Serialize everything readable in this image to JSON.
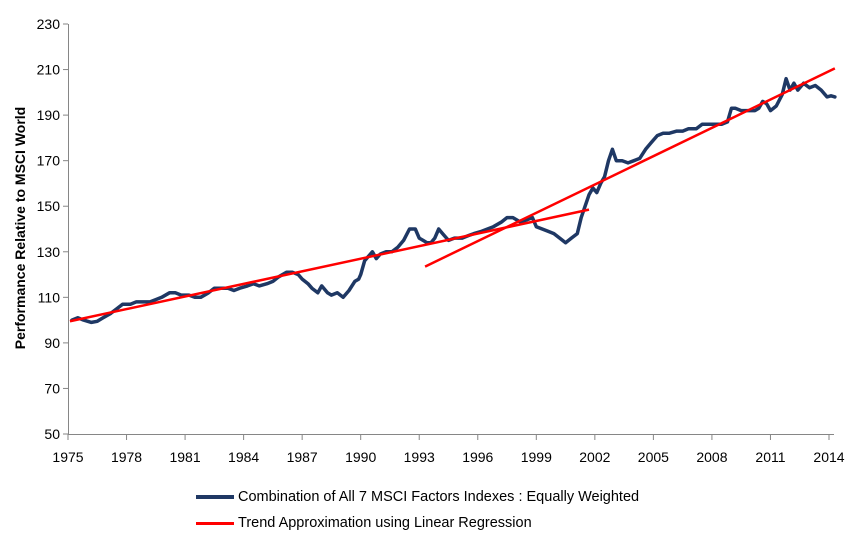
{
  "chart_data": {
    "type": "line",
    "title": "",
    "xlabel": "",
    "ylabel": "Performance Relative to MSCI World",
    "xlim": [
      1975,
      2014.3
    ],
    "ylim": [
      50,
      230
    ],
    "x_ticks": [
      "1975",
      "1978",
      "1981",
      "1984",
      "1987",
      "1990",
      "1993",
      "1996",
      "1999",
      "2002",
      "2005",
      "2008",
      "2011",
      "2014"
    ],
    "y_ticks": [
      "50",
      "70",
      "90",
      "110",
      "130",
      "150",
      "170",
      "190",
      "210",
      "230"
    ],
    "grid": false,
    "legend_position": "bottom",
    "series": [
      {
        "name": "Combination of All 7 MSCI Factors Indexes : Equally Weighted",
        "color": "#1f3864",
        "points": [
          [
            1975.2,
            100
          ],
          [
            1975.5,
            101
          ],
          [
            1975.8,
            100
          ],
          [
            1976.2,
            99
          ],
          [
            1976.5,
            99.5
          ],
          [
            1976.8,
            101
          ],
          [
            1977.2,
            103
          ],
          [
            1977.5,
            105
          ],
          [
            1977.8,
            107
          ],
          [
            1978.2,
            107
          ],
          [
            1978.5,
            108
          ],
          [
            1978.8,
            108
          ],
          [
            1979.2,
            108
          ],
          [
            1979.5,
            109
          ],
          [
            1979.8,
            110
          ],
          [
            1980.2,
            112
          ],
          [
            1980.5,
            112
          ],
          [
            1980.8,
            111
          ],
          [
            1981.2,
            111
          ],
          [
            1981.5,
            110
          ],
          [
            1981.8,
            110
          ],
          [
            1982.2,
            112
          ],
          [
            1982.5,
            114
          ],
          [
            1982.8,
            114
          ],
          [
            1983.2,
            114
          ],
          [
            1983.5,
            113
          ],
          [
            1983.8,
            114
          ],
          [
            1984.2,
            115
          ],
          [
            1984.5,
            116
          ],
          [
            1984.8,
            115
          ],
          [
            1985.2,
            116
          ],
          [
            1985.5,
            117
          ],
          [
            1985.8,
            119
          ],
          [
            1986.2,
            121
          ],
          [
            1986.5,
            121
          ],
          [
            1986.8,
            120
          ],
          [
            1987.0,
            118
          ],
          [
            1987.3,
            116
          ],
          [
            1987.5,
            114
          ],
          [
            1987.8,
            112
          ],
          [
            1988.0,
            115
          ],
          [
            1988.3,
            112
          ],
          [
            1988.5,
            111
          ],
          [
            1988.8,
            112
          ],
          [
            1989.1,
            110
          ],
          [
            1989.4,
            113
          ],
          [
            1989.7,
            117
          ],
          [
            1989.9,
            118
          ],
          [
            1990.0,
            120
          ],
          [
            1990.2,
            126
          ],
          [
            1990.4,
            128
          ],
          [
            1990.6,
            130
          ],
          [
            1990.8,
            127
          ],
          [
            1991.0,
            129
          ],
          [
            1991.3,
            130
          ],
          [
            1991.6,
            130
          ],
          [
            1991.9,
            132
          ],
          [
            1992.2,
            135
          ],
          [
            1992.5,
            140
          ],
          [
            1992.8,
            140
          ],
          [
            1993.0,
            136
          ],
          [
            1993.2,
            135
          ],
          [
            1993.4,
            134
          ],
          [
            1993.6,
            134
          ],
          [
            1993.8,
            136
          ],
          [
            1994.0,
            140
          ],
          [
            1994.2,
            138
          ],
          [
            1994.5,
            135
          ],
          [
            1994.8,
            136
          ],
          [
            1995.2,
            136
          ],
          [
            1995.5,
            137
          ],
          [
            1995.8,
            138
          ],
          [
            1996.2,
            139
          ],
          [
            1996.5,
            140
          ],
          [
            1996.8,
            141
          ],
          [
            1997.2,
            143
          ],
          [
            1997.5,
            145
          ],
          [
            1997.8,
            145
          ],
          [
            1998.2,
            143
          ],
          [
            1998.5,
            144
          ],
          [
            1998.8,
            145
          ],
          [
            1999.0,
            141
          ],
          [
            1999.3,
            140
          ],
          [
            1999.6,
            139
          ],
          [
            1999.9,
            138
          ],
          [
            2000.2,
            136
          ],
          [
            2000.5,
            134
          ],
          [
            2000.8,
            136
          ],
          [
            2001.1,
            138
          ],
          [
            2001.3,
            145
          ],
          [
            2001.5,
            150
          ],
          [
            2001.7,
            155
          ],
          [
            2001.9,
            158
          ],
          [
            2002.1,
            156
          ],
          [
            2002.3,
            160
          ],
          [
            2002.5,
            163
          ],
          [
            2002.7,
            170
          ],
          [
            2002.9,
            175
          ],
          [
            2003.1,
            170
          ],
          [
            2003.4,
            170
          ],
          [
            2003.7,
            169
          ],
          [
            2004.0,
            170
          ],
          [
            2004.3,
            171
          ],
          [
            2004.6,
            175
          ],
          [
            2004.9,
            178
          ],
          [
            2005.2,
            181
          ],
          [
            2005.5,
            182
          ],
          [
            2005.8,
            182
          ],
          [
            2006.2,
            183
          ],
          [
            2006.5,
            183
          ],
          [
            2006.8,
            184
          ],
          [
            2007.2,
            184
          ],
          [
            2007.5,
            186
          ],
          [
            2007.8,
            186
          ],
          [
            2008.2,
            186
          ],
          [
            2008.5,
            186
          ],
          [
            2008.8,
            187
          ],
          [
            2009.0,
            193
          ],
          [
            2009.2,
            193
          ],
          [
            2009.5,
            192
          ],
          [
            2009.8,
            192
          ],
          [
            2010.2,
            192
          ],
          [
            2010.4,
            193
          ],
          [
            2010.6,
            196
          ],
          [
            2010.8,
            195
          ],
          [
            2011.0,
            192
          ],
          [
            2011.3,
            194
          ],
          [
            2011.6,
            199
          ],
          [
            2011.8,
            206
          ],
          [
            2012.0,
            201
          ],
          [
            2012.2,
            204
          ],
          [
            2012.4,
            201
          ],
          [
            2012.7,
            204
          ],
          [
            2013.0,
            202
          ],
          [
            2013.3,
            203
          ],
          [
            2013.6,
            201
          ],
          [
            2013.9,
            198
          ],
          [
            2014.1,
            198.5
          ],
          [
            2014.3,
            198
          ]
        ]
      },
      {
        "name": "Trend Approximation using Linear Regression",
        "color": "#ff0000",
        "segments": [
          [
            [
              1975.1,
              99.5
            ],
            [
              2001.7,
              148.5
            ]
          ],
          [
            [
              1993.3,
              123.5
            ],
            [
              2014.3,
              210.5
            ]
          ]
        ]
      }
    ]
  }
}
